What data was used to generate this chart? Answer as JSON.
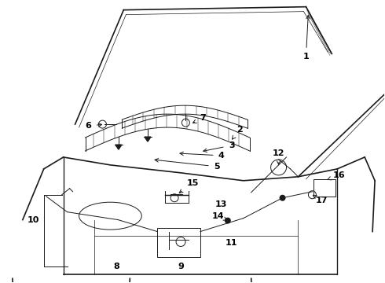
{
  "background_color": "#ffffff",
  "line_color": "#1a1a1a",
  "label_color": "#000000",
  "lw_main": 1.2,
  "lw_thin": 0.7,
  "lw_hair": 0.5,
  "figsize": [
    4.9,
    3.6
  ],
  "dpi": 100
}
